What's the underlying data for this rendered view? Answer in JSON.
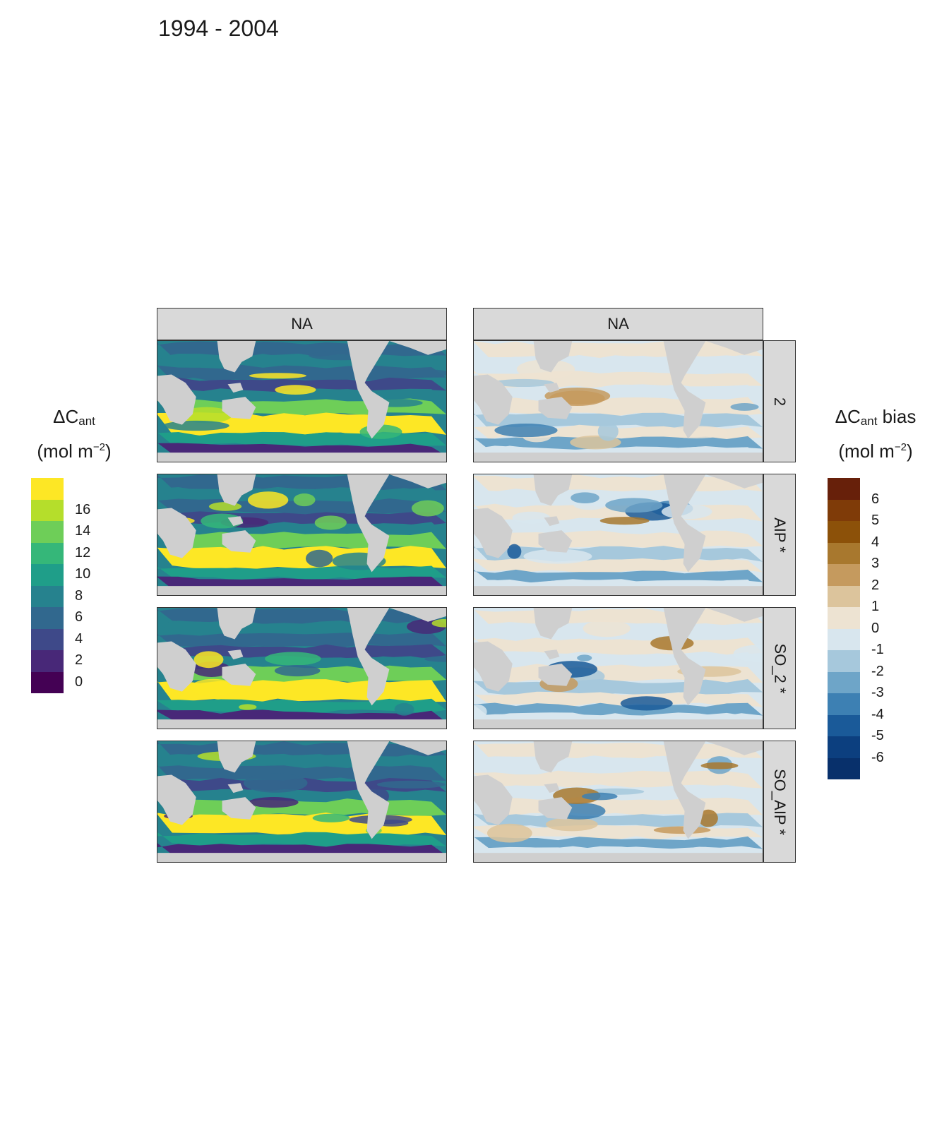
{
  "title": "1994 - 2004",
  "column_strips": [
    "NA",
    "NA"
  ],
  "row_strips": [
    "2",
    "AIP *",
    "SO_2 *",
    "SO_AIP *"
  ],
  "legend_left": {
    "title_symbol": "ΔC",
    "title_sub": "ant",
    "unit_pre": "(mol m",
    "unit_sup": "−2",
    "unit_post": ")",
    "ticks": [
      "16",
      "14",
      "12",
      "10",
      "8",
      "6",
      "4",
      "2",
      "0"
    ],
    "colors": [
      "#fde725",
      "#b5de2b",
      "#6ece58",
      "#35b779",
      "#1f9e89",
      "#26828e",
      "#31688e",
      "#3e4989",
      "#482878",
      "#440154"
    ]
  },
  "legend_right": {
    "title_symbol": "ΔC",
    "title_sub": "ant",
    "title_suffix": " bias",
    "unit_pre": "(mol m",
    "unit_sup": "−2",
    "unit_post": ")",
    "ticks": [
      "6",
      "5",
      "4",
      "3",
      "2",
      "1",
      "0",
      "-1",
      "-2",
      "-3",
      "-4",
      "-5",
      "-6"
    ],
    "colors": [
      "#67200a",
      "#7f3b08",
      "#8c5109",
      "#a8782e",
      "#c59a5e",
      "#dcc49c",
      "#ede3d2",
      "#d8e6ee",
      "#a6c8dc",
      "#6ea5c8",
      "#3d80b3",
      "#1a5a99",
      "#0c3f7f",
      "#08306b"
    ]
  },
  "colors": {
    "land": "#cfcfcf",
    "strip_bg": "#d9d9d9",
    "strip_border": "#333333"
  }
}
